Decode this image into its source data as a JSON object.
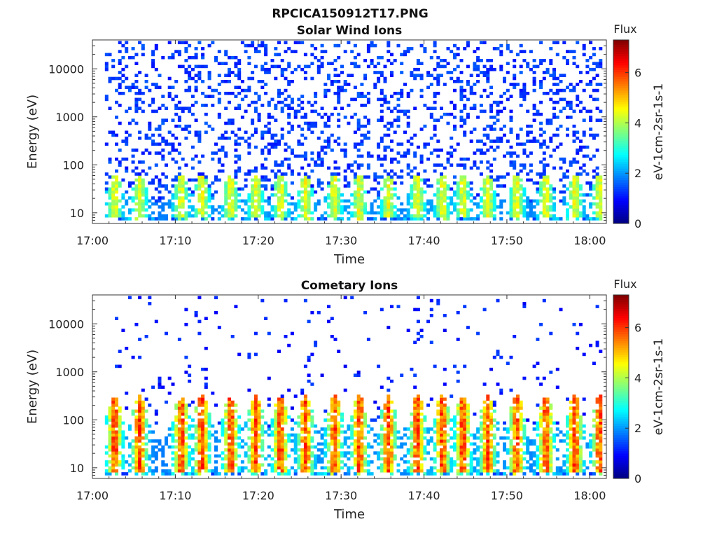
{
  "figure": {
    "filename_title": "RPCICA150912T17.PNG"
  },
  "colorscale": [
    "#00007f",
    "#0000ff",
    "#007fff",
    "#00ffff",
    "#7fff7f",
    "#ffff00",
    "#ff7f00",
    "#ff0000",
    "#7f0000"
  ],
  "chart_data": [
    {
      "type": "heatmap",
      "title": "Solar Wind Ions",
      "xlabel": "Time",
      "ylabel": "Energy (eV)",
      "x_range": [
        "17:00",
        "18:02"
      ],
      "x_ticks": [
        "17:00",
        "17:10",
        "17:20",
        "17:30",
        "17:40",
        "17:50",
        "18:00"
      ],
      "y_scale": "log",
      "y_range": [
        6,
        40000
      ],
      "y_ticks": [
        10,
        100,
        1000,
        10000
      ],
      "y_tick_labels": [
        "10",
        "100",
        "1000",
        "10000"
      ],
      "data_start": "17:01.5",
      "data_end": "18:01.5",
      "colorbar": {
        "title": "Flux",
        "label": "eV-1cm-2sr-1s-1",
        "range": [
          0,
          7.3
        ],
        "ticks": [
          0,
          2,
          4,
          6
        ],
        "tick_labels": [
          "0",
          "2",
          "4",
          "6"
        ]
      },
      "low_energy_band": {
        "energy_range": [
          8,
          60
        ],
        "typical_flux": 3.5,
        "peak_flux": 4.8
      },
      "background_flux": 1.0,
      "pulse_times": [
        "17:02.5",
        "17:05.5",
        "17:10.5",
        "17:13",
        "17:16.5",
        "17:19.5",
        "17:22.5",
        "17:25.5",
        "17:29",
        "17:32",
        "17:35.5",
        "17:39",
        "17:42",
        "17:44.5",
        "17:47.5",
        "17:51",
        "17:54.5",
        "17:58",
        "18:01"
      ]
    },
    {
      "type": "heatmap",
      "title": "Cometary Ions",
      "xlabel": "Time",
      "ylabel": "Energy (eV)",
      "x_range": [
        "17:00",
        "18:02"
      ],
      "x_ticks": [
        "17:00",
        "17:10",
        "17:20",
        "17:30",
        "17:40",
        "17:50",
        "18:00"
      ],
      "y_scale": "log",
      "y_range": [
        6,
        40000
      ],
      "y_ticks": [
        10,
        100,
        1000,
        10000
      ],
      "y_tick_labels": [
        "10",
        "100",
        "1000",
        "10000"
      ],
      "data_start": "17:01.5",
      "data_end": "18:01.5",
      "colorbar": {
        "title": "Flux",
        "label": "eV-1cm-2sr-1s-1",
        "range": [
          0,
          7.3
        ],
        "ticks": [
          0,
          2,
          4,
          6
        ],
        "tick_labels": [
          "0",
          "2",
          "4",
          "6"
        ]
      },
      "low_energy_band": {
        "energy_range": [
          8,
          300
        ],
        "typical_flux": 5.5,
        "peak_flux": 6.5
      },
      "background_flux": 0.8,
      "pulse_times": [
        "17:02.5",
        "17:05.5",
        "17:10.5",
        "17:13",
        "17:16.5",
        "17:19.5",
        "17:22.5",
        "17:25.5",
        "17:29",
        "17:32",
        "17:35.5",
        "17:39",
        "17:42",
        "17:44.5",
        "17:47.5",
        "17:51",
        "17:54.5",
        "17:58",
        "18:01"
      ]
    }
  ]
}
